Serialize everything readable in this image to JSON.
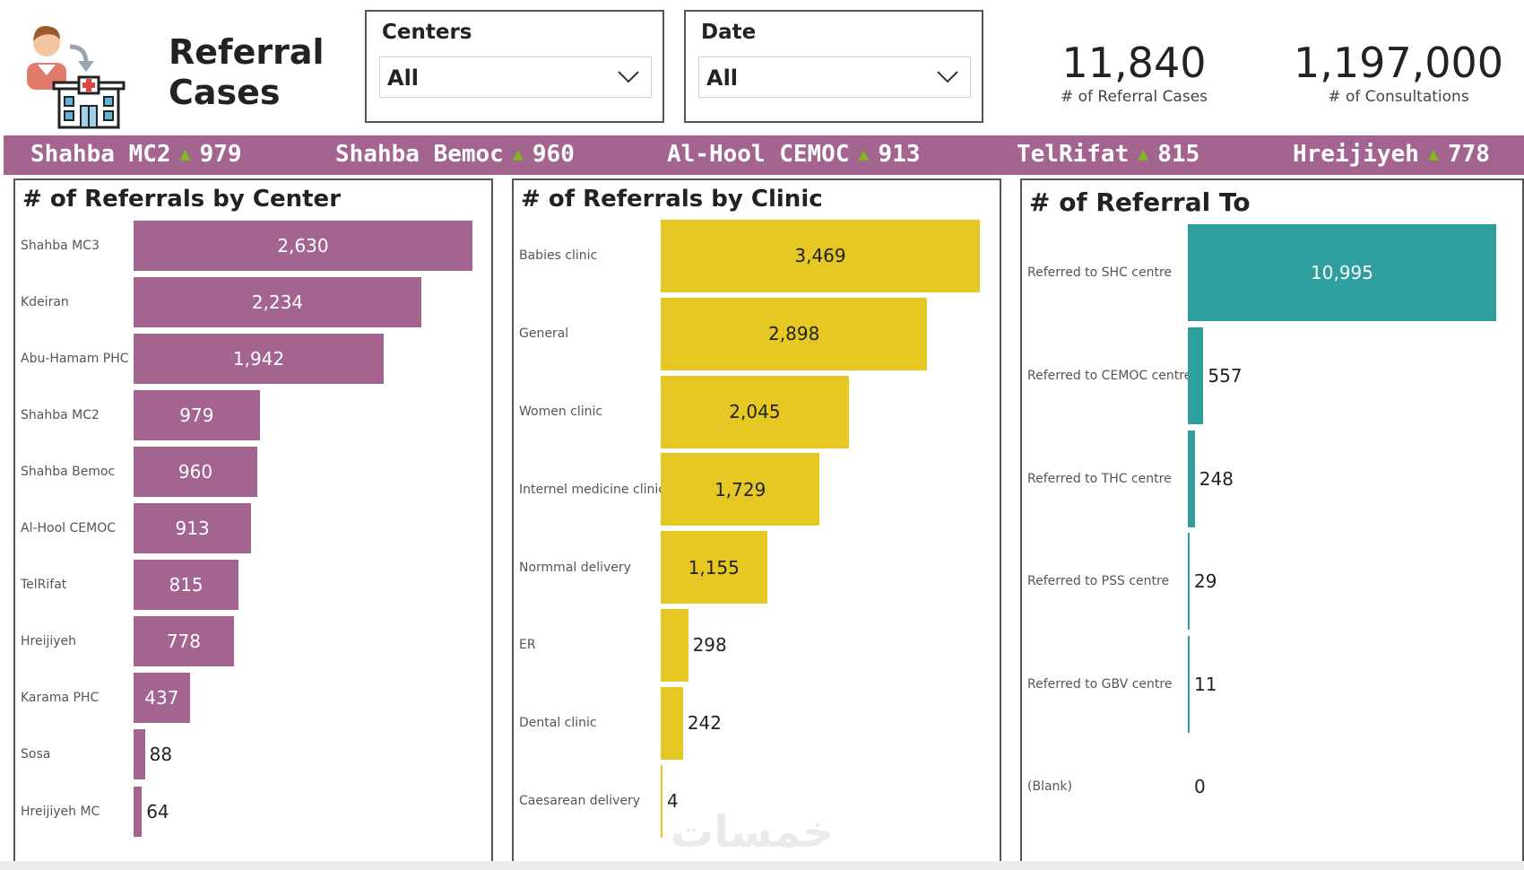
{
  "header": {
    "title_line1": "Referral",
    "title_line2": "Cases",
    "slicers": [
      {
        "label": "Centers",
        "value": "All"
      },
      {
        "label": "Date",
        "value": "All"
      }
    ],
    "kpis": [
      {
        "value": "11,840",
        "caption": "# of Referral Cases"
      },
      {
        "value": "1,197,000",
        "caption": "# of Consultations"
      }
    ]
  },
  "ticker": [
    {
      "name": "Shahba MC2",
      "value": "979"
    },
    {
      "name": "Shahba Bemoc",
      "value": "960"
    },
    {
      "name": "Al-Hool CEMOC",
      "value": "913"
    },
    {
      "name": "TelRifat",
      "value": "815"
    },
    {
      "name": "Hreijiyeh",
      "value": "778"
    }
  ],
  "watermark": "خمسات",
  "colors": {
    "purple": "#a3648f",
    "gold": "#e5c823",
    "teal": "#2e9e9e",
    "arrow": "#7fb81f"
  },
  "chart_data": [
    {
      "type": "bar",
      "orientation": "horizontal",
      "title": "# of Referrals by Center",
      "categories": [
        "Shahba MC3",
        "Kdeiran",
        "Abu-Hamam PHC",
        "Shahba MC2",
        "Shahba Bemoc",
        "Al-Hool CEMOC",
        "TelRifat",
        "Hreijiyeh",
        "Karama PHC",
        "Sosa",
        "Hreijiyeh MC"
      ],
      "values": [
        2630,
        2234,
        1942,
        979,
        960,
        913,
        815,
        778,
        437,
        88,
        64
      ],
      "labels": [
        "2,630",
        "2,234",
        "1,942",
        "979",
        "960",
        "913",
        "815",
        "778",
        "437",
        "88",
        "64"
      ],
      "xlim": [
        0,
        2630
      ]
    },
    {
      "type": "bar",
      "orientation": "horizontal",
      "title": "# of Referrals by Clinic",
      "categories": [
        "Babies clinic",
        "General",
        "Women clinic",
        "Internel medicine clinic",
        "Normmal delivery",
        "ER",
        "Dental clinic",
        "Caesarean delivery"
      ],
      "values": [
        3469,
        2898,
        2045,
        1729,
        1155,
        298,
        242,
        4
      ],
      "labels": [
        "3,469",
        "2,898",
        "2,045",
        "1,729",
        "1,155",
        "298",
        "242",
        "4"
      ],
      "xlim": [
        0,
        3469
      ]
    },
    {
      "type": "bar",
      "orientation": "horizontal",
      "title": "# of Referral To",
      "categories": [
        "Referred to SHC centre",
        "Referred to CEMOC centre",
        "Referred to THC centre",
        "Referred to PSS centre",
        "Referred to GBV centre",
        "(Blank)"
      ],
      "values": [
        10995,
        557,
        248,
        29,
        11,
        0
      ],
      "labels": [
        "10,995",
        "557",
        "248",
        "29",
        "11",
        "0"
      ],
      "xlim": [
        0,
        10995
      ]
    }
  ]
}
